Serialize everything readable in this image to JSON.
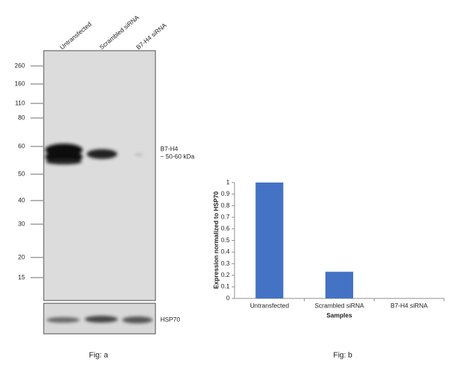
{
  "figure_a": {
    "lanes": [
      "Untransfected",
      "Scrambled siRNA",
      "B7-H4 siRNA"
    ],
    "markers": [
      "260",
      "160",
      "110",
      "80",
      "60",
      "50",
      "40",
      "30",
      "20",
      "15"
    ],
    "band_label": "B7-H4",
    "band_size": "~ 50-60 kDa",
    "loading_label": "HSP70",
    "caption": "Fig: a"
  },
  "chart_data": {
    "type": "bar",
    "categories": [
      "Untransfected",
      "Scrambled siRNA",
      "B7-H4 siRNA"
    ],
    "values": [
      1,
      0.23,
      0
    ],
    "color": "#4472c4",
    "ylim": [
      0,
      1
    ],
    "yticks": [
      0,
      0.1,
      0.2,
      0.3,
      0.4,
      0.5,
      0.6,
      0.7,
      0.8,
      0.9,
      1
    ],
    "ylabel": "Expression normalized to HSP70",
    "xlabel": "Samples",
    "caption": "Fig: b"
  }
}
